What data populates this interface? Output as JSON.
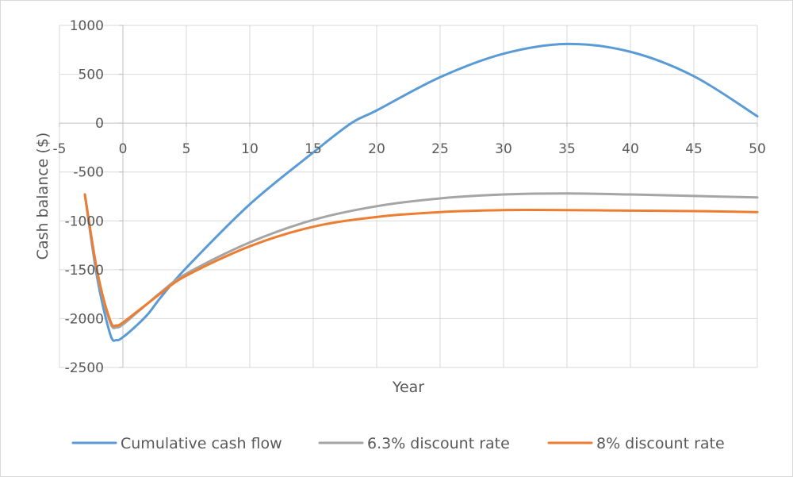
{
  "chart_data": {
    "type": "line",
    "title": "",
    "xlabel": "Year",
    "ylabel": "Cash balance ($)",
    "xlim": [
      -5,
      50
    ],
    "ylim": [
      -2500,
      1000
    ],
    "x_ticks": [
      -5,
      0,
      5,
      10,
      15,
      20,
      25,
      30,
      35,
      40,
      45,
      50
    ],
    "x_tick_labels": [
      "-5",
      "0",
      "5",
      "10",
      "15",
      "20",
      "25",
      "30",
      "35",
      "40",
      "45",
      "50"
    ],
    "y_ticks": [
      -2500,
      -2000,
      -1500,
      -1000,
      -500,
      0,
      500,
      1000
    ],
    "y_tick_labels": [
      "-2500",
      "-2000",
      "-1500",
      "-1000",
      "-500",
      "0",
      "500",
      "1000"
    ],
    "grid": true,
    "legend_position": "bottom",
    "series": [
      {
        "name": "Cumulative cash flow",
        "color": "#5b9bd5",
        "x": [
          -3,
          -2,
          -1,
          -0.5,
          0,
          1,
          2,
          3,
          5,
          10,
          15,
          18,
          20,
          25,
          30,
          35,
          40,
          45,
          50
        ],
        "y": [
          -730,
          -1600,
          -2160,
          -2220,
          -2190,
          -2080,
          -1950,
          -1780,
          -1480,
          -830,
          -300,
          0,
          130,
          470,
          710,
          810,
          730,
          480,
          70
        ]
      },
      {
        "name": "6.3% discount rate",
        "color": "#a5a5a5",
        "x": [
          -3,
          -2,
          -1,
          -0.5,
          0,
          1,
          2,
          3,
          5,
          10,
          15,
          20,
          25,
          30,
          35,
          40,
          45,
          50
        ],
        "y": [
          -730,
          -1550,
          -2040,
          -2090,
          -2060,
          -1950,
          -1840,
          -1730,
          -1540,
          -1220,
          -990,
          -850,
          -770,
          -730,
          -720,
          -730,
          -745,
          -760
        ]
      },
      {
        "name": "8% discount rate",
        "color": "#ed7d31",
        "x": [
          -3,
          -2,
          -1,
          -0.5,
          0,
          1,
          2,
          3,
          5,
          10,
          15,
          20,
          25,
          30,
          35,
          40,
          45,
          50
        ],
        "y": [
          -730,
          -1530,
          -2020,
          -2070,
          -2040,
          -1940,
          -1840,
          -1740,
          -1560,
          -1260,
          -1060,
          -960,
          -910,
          -890,
          -890,
          -895,
          -900,
          -910
        ]
      }
    ]
  }
}
